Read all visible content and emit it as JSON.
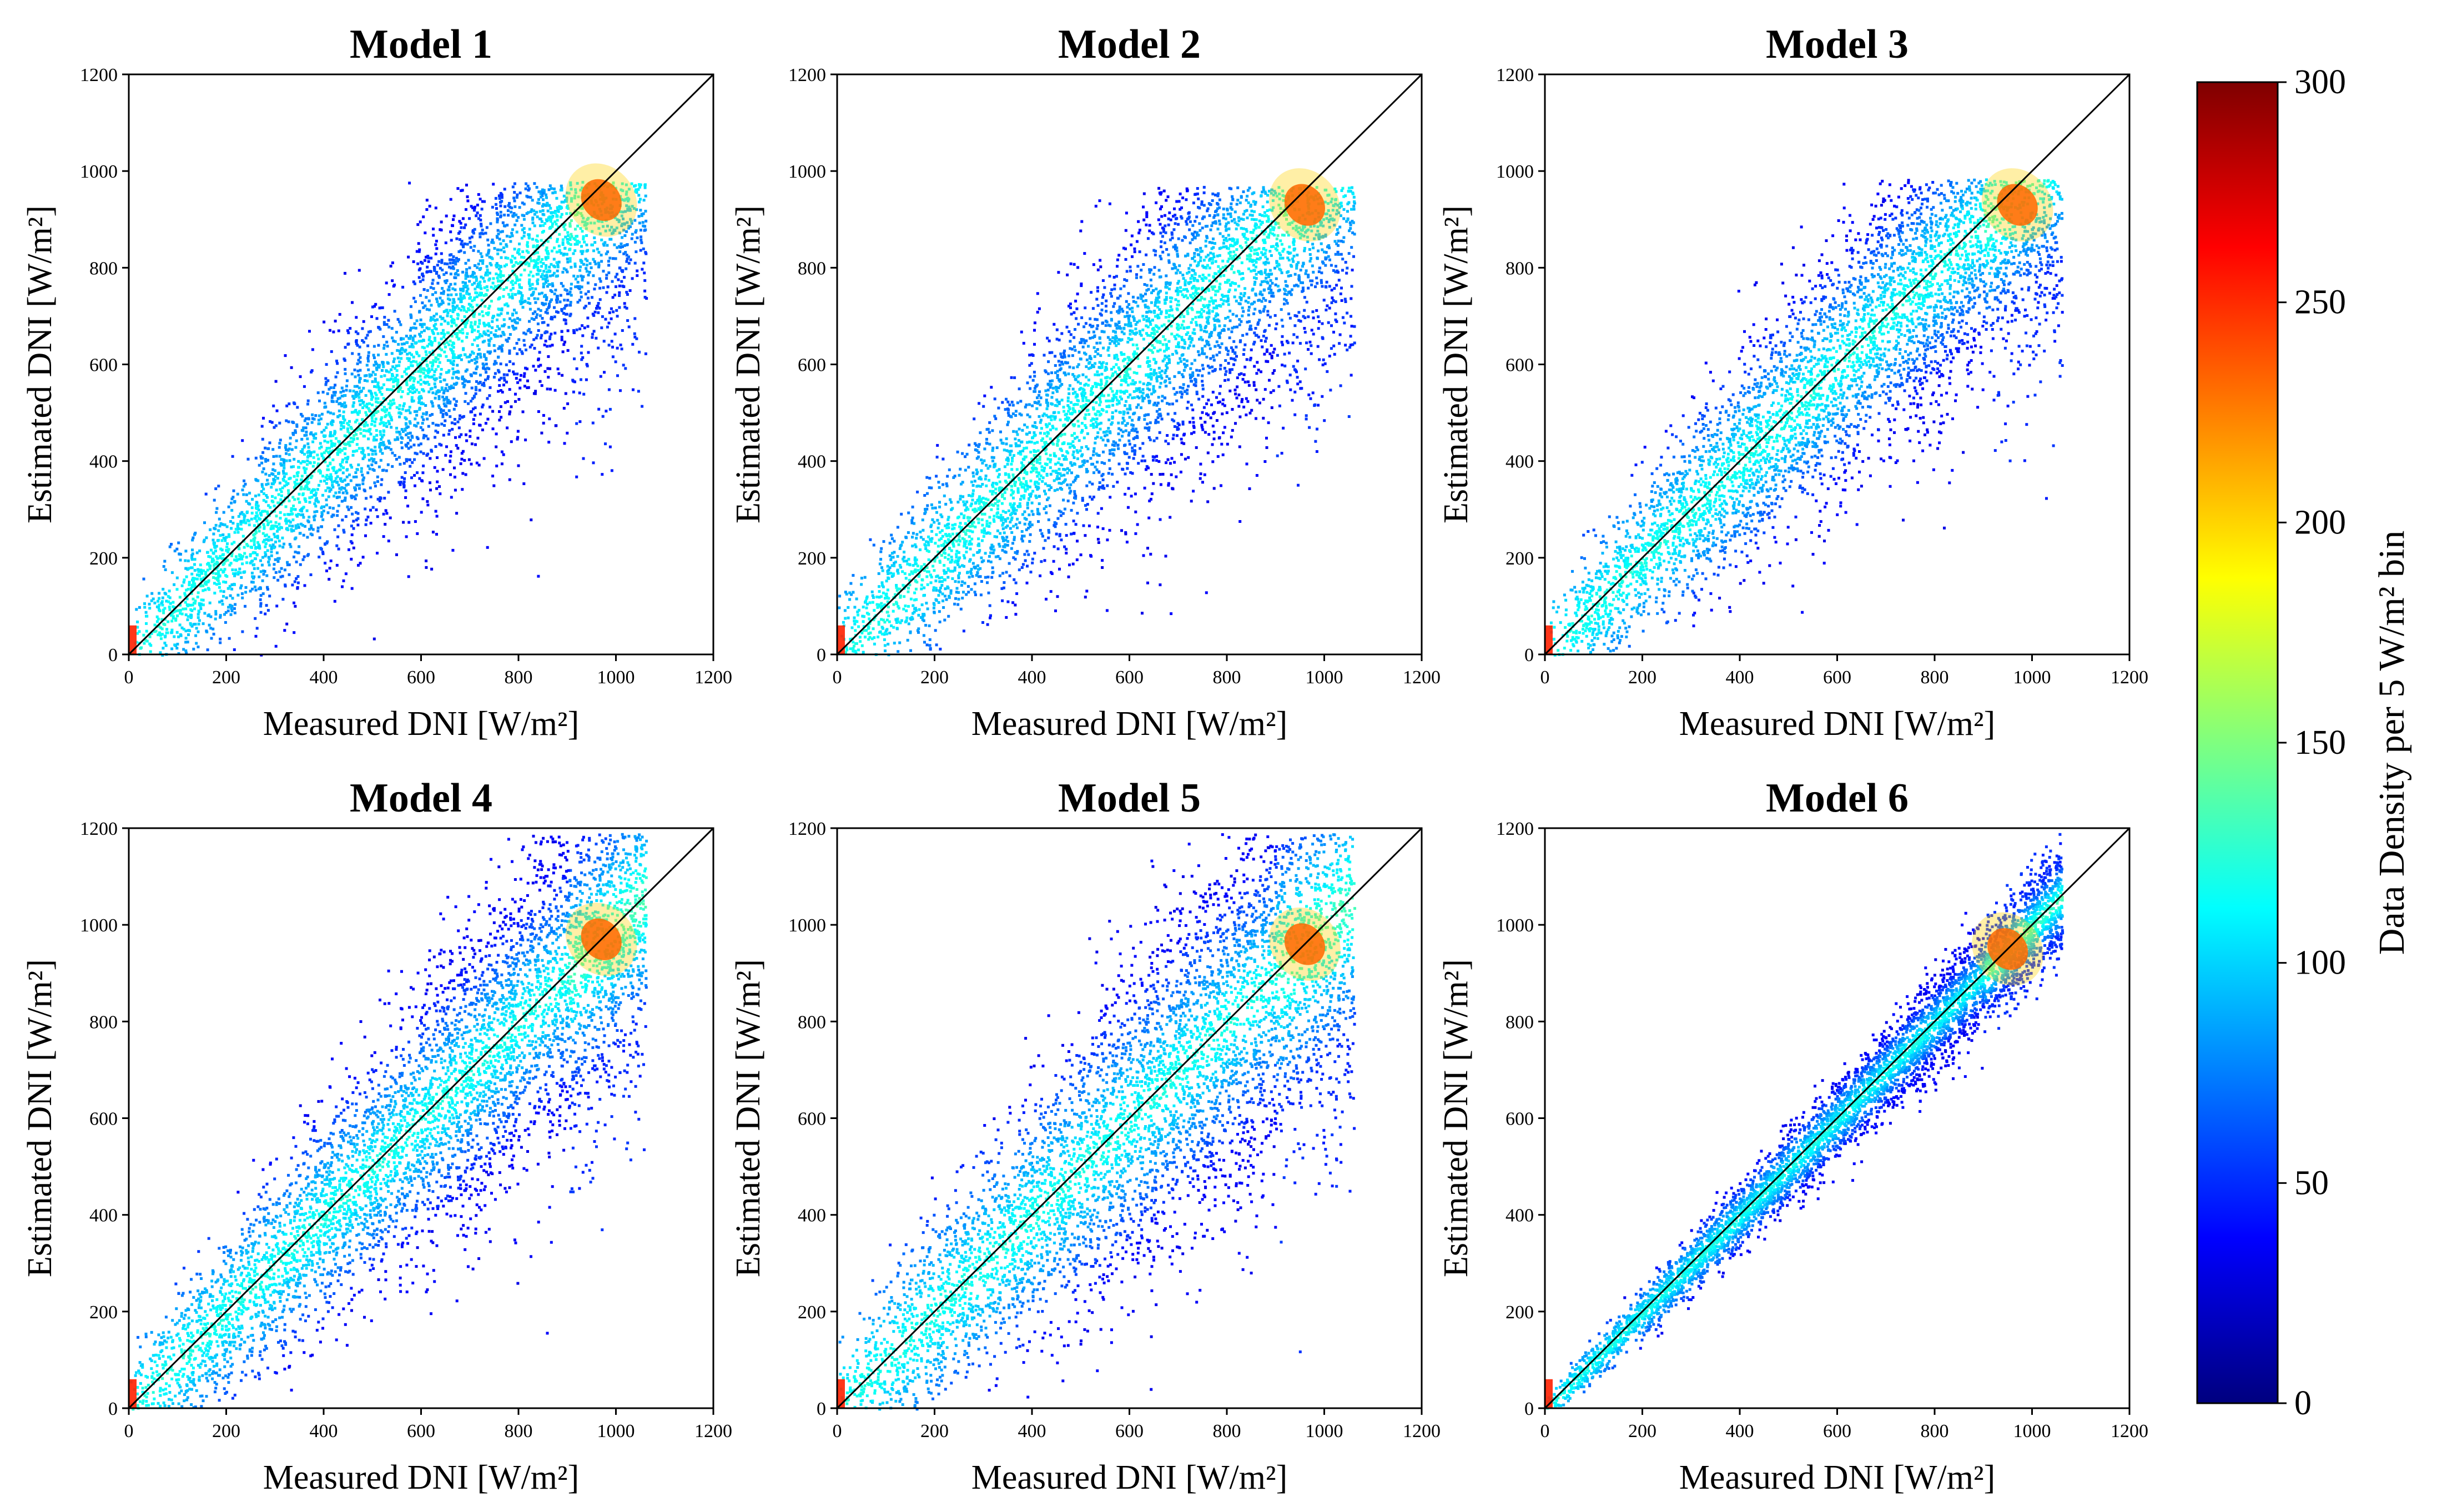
{
  "figure": {
    "colorbar": {
      "label": "Data Density per 5 W/m² bin",
      "range": [
        0,
        300
      ],
      "ticks": [
        "0",
        "50",
        "100",
        "150",
        "200",
        "250",
        "300"
      ],
      "colormap": "jet",
      "colors": [
        "#00007f",
        "#0000ff",
        "#007fff",
        "#00ffff",
        "#7fff7f",
        "#ffff00",
        "#ff7f00",
        "#ff0000",
        "#7f0000"
      ]
    }
  },
  "chart_data": [
    {
      "type": "heatmap",
      "title": "Model 1",
      "xlabel": "Measured DNI [W/m²]",
      "ylabel": "Estimated DNI [W/m²]",
      "xlim": [
        0,
        1200
      ],
      "ylim": [
        0,
        1200
      ],
      "xticks": [
        "0",
        "200",
        "400",
        "600",
        "800",
        "1000",
        "1200"
      ],
      "yticks": [
        "0",
        "200",
        "400",
        "600",
        "800",
        "1000",
        "1200"
      ],
      "reference_line": "1:1",
      "max_density_near": [
        970,
        940
      ],
      "estimate_cap": 980
    },
    {
      "type": "heatmap",
      "title": "Model 2",
      "xlabel": "Measured DNI [W/m²]",
      "ylabel": "Estimated DNI [W/m²]",
      "xlim": [
        0,
        1200
      ],
      "ylim": [
        0,
        1200
      ],
      "xticks": [
        "0",
        "200",
        "400",
        "600",
        "800",
        "1000",
        "1200"
      ],
      "yticks": [
        "0",
        "200",
        "400",
        "600",
        "800",
        "1000",
        "1200"
      ],
      "reference_line": "1:1",
      "max_density_near": [
        960,
        930
      ],
      "estimate_cap": 970
    },
    {
      "type": "heatmap",
      "title": "Model 3",
      "xlabel": "Measured DNI [W/m²]",
      "ylabel": "Estimated DNI [W/m²]",
      "xlim": [
        0,
        1200
      ],
      "ylim": [
        0,
        1200
      ],
      "xticks": [
        "0",
        "200",
        "400",
        "600",
        "800",
        "1000",
        "1200"
      ],
      "yticks": [
        "0",
        "200",
        "400",
        "600",
        "800",
        "1000",
        "1200"
      ],
      "reference_line": "1:1",
      "max_density_near": [
        970,
        930
      ],
      "estimate_cap": 985
    },
    {
      "type": "heatmap",
      "title": "Model 4",
      "xlabel": "Measured DNI [W/m²]",
      "ylabel": "Estimated DNI [W/m²]",
      "xlim": [
        0,
        1200
      ],
      "ylim": [
        0,
        1200
      ],
      "xticks": [
        "0",
        "200",
        "400",
        "600",
        "800",
        "1000",
        "1200"
      ],
      "yticks": [
        "0",
        "200",
        "400",
        "600",
        "800",
        "1000",
        "1200"
      ],
      "reference_line": "1:1",
      "max_density_near": [
        970,
        970
      ]
    },
    {
      "type": "heatmap",
      "title": "Model 5",
      "xlabel": "Measured DNI [W/m²]",
      "ylabel": "Estimated DNI [W/m²]",
      "xlim": [
        0,
        1200
      ],
      "ylim": [
        0,
        1200
      ],
      "xticks": [
        "0",
        "200",
        "400",
        "600",
        "800",
        "1000",
        "1200"
      ],
      "yticks": [
        "0",
        "200",
        "400",
        "600",
        "800",
        "1000",
        "1200"
      ],
      "reference_line": "1:1",
      "max_density_near": [
        960,
        960
      ]
    },
    {
      "type": "heatmap",
      "title": "Model 6",
      "xlabel": "Measured DNI [W/m²]",
      "ylabel": "Estimated DNI [W/m²]",
      "xlim": [
        0,
        1200
      ],
      "ylim": [
        0,
        1200
      ],
      "xticks": [
        "0",
        "200",
        "400",
        "600",
        "800",
        "1000",
        "1200"
      ],
      "yticks": [
        "0",
        "200",
        "400",
        "600",
        "800",
        "1000",
        "1200"
      ],
      "reference_line": "1:1",
      "max_density_near": [
        950,
        950
      ]
    }
  ]
}
